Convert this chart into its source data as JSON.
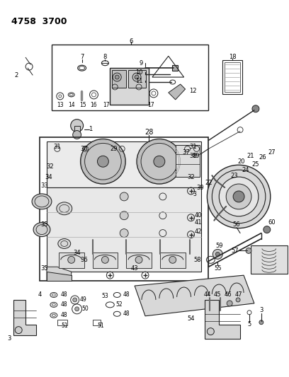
{
  "title_code": "4758  3700",
  "bg_color": "#ffffff",
  "line_color": "#222222",
  "fig_width": 4.08,
  "fig_height": 5.33,
  "dpi": 100
}
